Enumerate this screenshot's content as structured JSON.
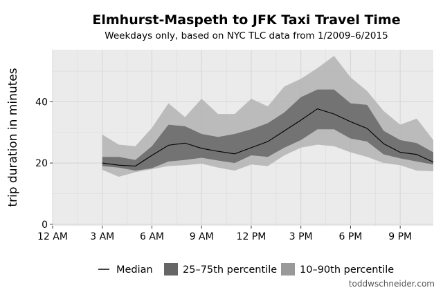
{
  "chart_data": {
    "type": "area",
    "title": "Elmhurst-Maspeth to JFK Taxi Travel Time",
    "subtitle": "Weekdays only, based on NYC TLC data from 1/2009–6/2015",
    "xlabel": "",
    "ylabel": "trip duration in minutes",
    "xlim": [
      0,
      23
    ],
    "ylim": [
      -0.5,
      57
    ],
    "x_ticks": [
      0,
      3,
      6,
      9,
      12,
      15,
      18,
      21
    ],
    "x_tick_labels": [
      "12 AM",
      "3 AM",
      "6 AM",
      "9 AM",
      "12 PM",
      "3 PM",
      "6 PM",
      "9 PM"
    ],
    "y_ticks": [
      0,
      20,
      40
    ],
    "y_tick_labels": [
      "0",
      "20",
      "40"
    ],
    "grid": true,
    "legend_position": "bottom",
    "x": [
      3,
      4,
      5,
      6,
      7,
      8,
      9,
      10,
      11,
      12,
      13,
      14,
      15,
      16,
      17,
      18,
      19,
      20,
      21,
      22,
      23
    ],
    "series": [
      {
        "name": "Median",
        "kind": "line",
        "color": "#000000",
        "values": [
          20.0,
          19.3,
          19.0,
          22.5,
          25.8,
          26.5,
          24.8,
          23.8,
          23.0,
          25.0,
          27.0,
          30.5,
          34.0,
          37.7,
          36.0,
          33.5,
          31.3,
          26.3,
          23.5,
          22.8,
          20.3
        ]
      },
      {
        "name": "25–75th percentile",
        "kind": "band",
        "color": "#666666",
        "low": [
          19.0,
          18.5,
          17.5,
          18.3,
          20.5,
          21.0,
          21.7,
          20.8,
          20.0,
          22.5,
          22.0,
          25.0,
          27.5,
          31.0,
          31.0,
          28.0,
          27.0,
          22.8,
          21.5,
          20.5,
          19.5
        ],
        "high": [
          22.0,
          22.0,
          21.0,
          25.5,
          32.5,
          32.0,
          29.5,
          28.5,
          29.5,
          31.0,
          33.0,
          36.5,
          41.5,
          44.0,
          44.0,
          39.5,
          39.0,
          30.5,
          27.5,
          26.5,
          23.5
        ]
      },
      {
        "name": "10–90th percentile",
        "kind": "band",
        "color": "#b3b3b3",
        "low": [
          17.8,
          15.5,
          17.0,
          18.0,
          19.0,
          19.3,
          19.8,
          18.5,
          17.5,
          19.5,
          19.0,
          22.5,
          25.0,
          26.0,
          25.5,
          23.5,
          22.0,
          20.0,
          19.3,
          17.5,
          17.3
        ],
        "high": [
          29.3,
          26.0,
          25.5,
          31.5,
          39.5,
          35.0,
          41.0,
          36.0,
          36.0,
          41.0,
          38.5,
          45.0,
          47.5,
          51.0,
          55.0,
          48.0,
          43.5,
          37.0,
          32.5,
          34.5,
          27.5
        ]
      }
    ],
    "credit": "toddwschneider.com"
  },
  "colors": {
    "panel_background": "#ebebeb",
    "grid_major": "#d4d4d4",
    "grid_minor": "#dedede"
  }
}
